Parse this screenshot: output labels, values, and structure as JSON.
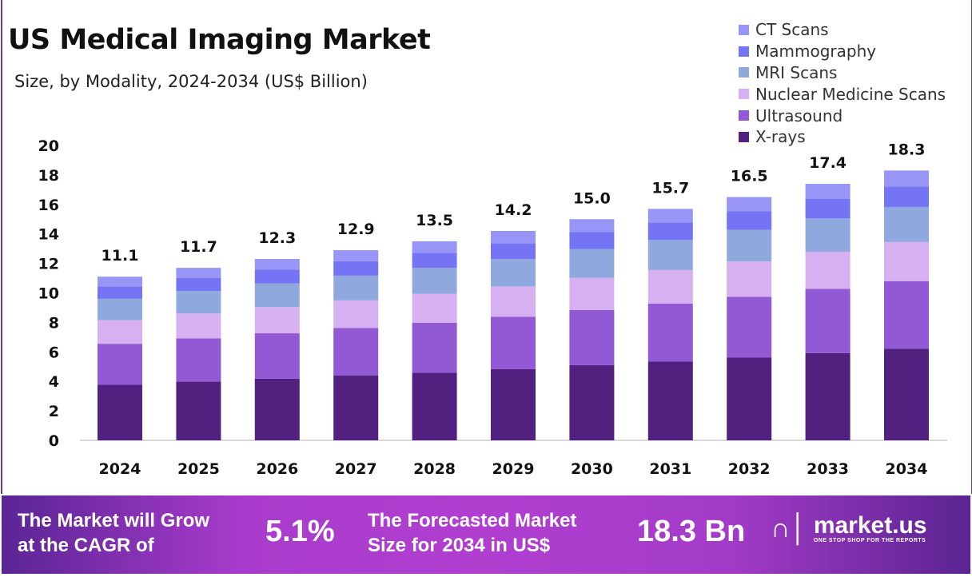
{
  "chart_data": {
    "type": "bar",
    "stacked": true,
    "title": "US Medical Imaging Market",
    "subtitle": "Size, by Modality, 2024-2034 (US$ Billion)",
    "categories": [
      "2024",
      "2025",
      "2026",
      "2027",
      "2028",
      "2029",
      "2030",
      "2031",
      "2032",
      "2033",
      "2034"
    ],
    "totals": [
      "11.1",
      "11.7",
      "12.3",
      "12.9",
      "13.5",
      "14.2",
      "15.0",
      "15.7",
      "16.5",
      "17.4",
      "18.3"
    ],
    "ylim": [
      0,
      20
    ],
    "yticks": [
      "0",
      "2",
      "4",
      "6",
      "8",
      "10",
      "12",
      "14",
      "16",
      "18",
      "20"
    ],
    "grid": false,
    "legend_position": "top-right",
    "series": [
      {
        "name": "X-rays",
        "color": "#52217f",
        "values": [
          3.77,
          3.98,
          4.18,
          4.39,
          4.59,
          4.83,
          5.1,
          5.34,
          5.61,
          5.92,
          6.22
        ]
      },
      {
        "name": "Ultrasound",
        "color": "#9159d3",
        "values": [
          2.78,
          2.93,
          3.08,
          3.23,
          3.38,
          3.55,
          3.75,
          3.93,
          4.13,
          4.35,
          4.58
        ]
      },
      {
        "name": "Nuclear Medicine Scans",
        "color": "#d6b0f0",
        "values": [
          1.61,
          1.7,
          1.78,
          1.87,
          1.96,
          2.06,
          2.18,
          2.28,
          2.39,
          2.52,
          2.65
        ]
      },
      {
        "name": "MRI Scans",
        "color": "#8fa8de",
        "values": [
          1.44,
          1.52,
          1.6,
          1.68,
          1.76,
          1.85,
          1.95,
          2.04,
          2.15,
          2.26,
          2.38
        ]
      },
      {
        "name": "Mammography",
        "color": "#7574f5",
        "values": [
          0.84,
          0.89,
          0.93,
          0.98,
          1.03,
          1.08,
          1.14,
          1.19,
          1.25,
          1.32,
          1.39
        ]
      },
      {
        "name": "CT Scans",
        "color": "#9795f5",
        "values": [
          0.66,
          0.68,
          0.73,
          0.75,
          0.78,
          0.83,
          0.88,
          0.92,
          0.97,
          1.03,
          1.08
        ]
      }
    ]
  },
  "legend_order": [
    "CT Scans",
    "Mammography",
    "MRI Scans",
    "Nuclear Medicine Scans",
    "Ultrasound",
    "X-rays"
  ],
  "footer": {
    "cagr_label_1": "The Market will Grow",
    "cagr_label_2": "at the CAGR of",
    "cagr_value": "5.1%",
    "forecast_label_1": "The Forecasted Market",
    "forecast_label_2": "Size for 2034 in US$",
    "forecast_value": "18.3 Bn",
    "logo_name": "market.us",
    "logo_tagline": "ONE STOP SHOP FOR THE REPORTS"
  }
}
